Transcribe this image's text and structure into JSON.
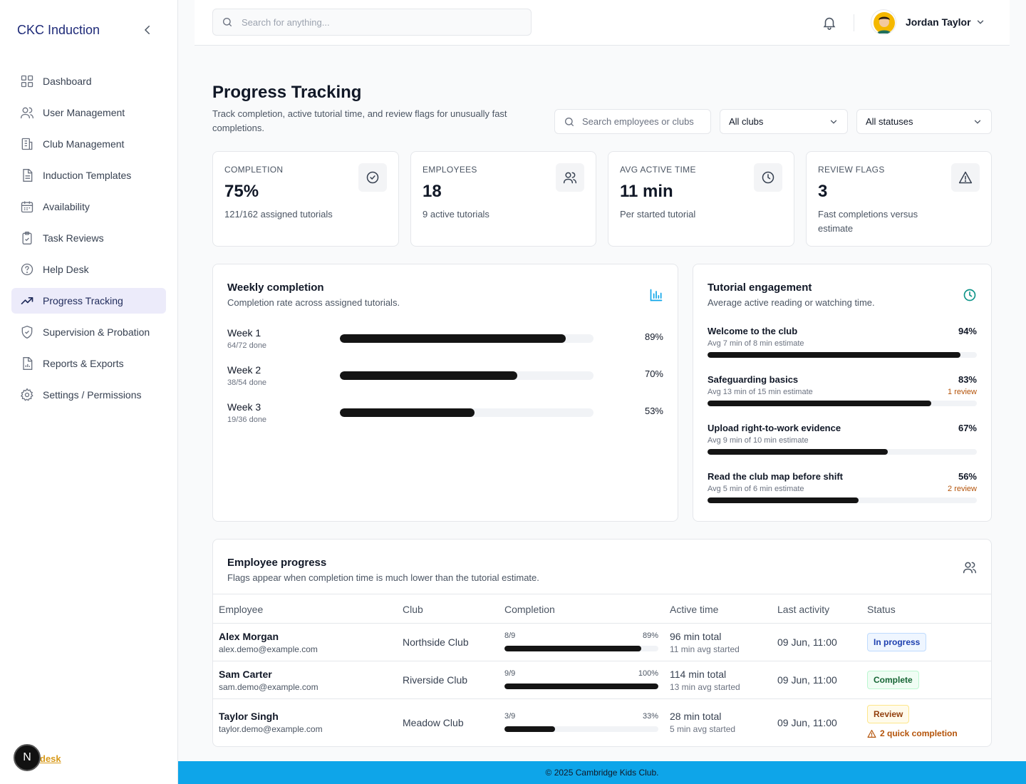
{
  "sidebar": {
    "brand": "CKC Induction",
    "items": [
      {
        "label": "Dashboard",
        "icon": "grid-icon"
      },
      {
        "label": "User Management",
        "icon": "users-icon"
      },
      {
        "label": "Club Management",
        "icon": "building-icon"
      },
      {
        "label": "Induction Templates",
        "icon": "document-icon"
      },
      {
        "label": "Availability",
        "icon": "calendar-icon"
      },
      {
        "label": "Task Reviews",
        "icon": "clipboard-check-icon"
      },
      {
        "label": "Help Desk",
        "icon": "help-circle-icon"
      },
      {
        "label": "Progress Tracking",
        "icon": "trending-up-icon",
        "active": true
      },
      {
        "label": "Supervision & Probation",
        "icon": "shield-check-icon"
      },
      {
        "label": "Reports & Exports",
        "icon": "file-chart-icon"
      },
      {
        "label": "Settings / Permissions",
        "icon": "gear-icon"
      }
    ],
    "badge_letter": "N",
    "help_link": "desk"
  },
  "topbar": {
    "search_placeholder": "Search for anything...",
    "user_name": "Jordan Taylor"
  },
  "page": {
    "title": "Progress Tracking",
    "subtitle": "Track completion, active tutorial time, and review flags for unusually fast completions.",
    "filter_search_placeholder": "Search employees or clubs",
    "club_filter": "All clubs",
    "status_filter": "All statuses"
  },
  "stats": [
    {
      "label": "COMPLETION",
      "value": "75%",
      "sub": "121/162 assigned tutorials",
      "icon": "check-circle-icon"
    },
    {
      "label": "EMPLOYEES",
      "value": "18",
      "sub": "9 active tutorials",
      "icon": "users-icon"
    },
    {
      "label": "AVG ACTIVE TIME",
      "value": "11 min",
      "sub": "Per started tutorial",
      "icon": "clock-icon"
    },
    {
      "label": "REVIEW FLAGS",
      "value": "3",
      "sub": "Fast completions versus estimate",
      "icon": "warning-triangle-icon"
    }
  ],
  "weekly": {
    "title": "Weekly completion",
    "subtitle": "Completion rate across assigned tutorials.",
    "rows": [
      {
        "name": "Week 1",
        "sub": "64/72 done",
        "pct": 89,
        "pct_label": "89%"
      },
      {
        "name": "Week 2",
        "sub": "38/54 done",
        "pct": 70,
        "pct_label": "70%"
      },
      {
        "name": "Week 3",
        "sub": "19/36 done",
        "pct": 53,
        "pct_label": "53%"
      }
    ]
  },
  "engagement": {
    "title": "Tutorial engagement",
    "subtitle": "Average active reading or watching time.",
    "rows": [
      {
        "name": "Welcome to the club",
        "sub": "Avg 7 min of 8 min estimate",
        "pct": 94,
        "pct_label": "94%",
        "review": ""
      },
      {
        "name": "Safeguarding basics",
        "sub": "Avg 13 min of 15 min estimate",
        "pct": 83,
        "pct_label": "83%",
        "review": "1 review"
      },
      {
        "name": "Upload right-to-work evidence",
        "sub": "Avg 9 min of 10 min estimate",
        "pct": 67,
        "pct_label": "67%",
        "review": ""
      },
      {
        "name": "Read the club map before shift",
        "sub": "Avg 5 min of 6 min estimate",
        "pct": 56,
        "pct_label": "56%",
        "review": "2 review"
      }
    ]
  },
  "employees": {
    "title": "Employee progress",
    "subtitle": "Flags appear when completion time is much lower than the tutorial estimate.",
    "headers": [
      "Employee",
      "Club",
      "Completion",
      "Active time",
      "Last activity",
      "Status"
    ],
    "rows": [
      {
        "name": "Alex Morgan",
        "email": "alex.demo@example.com",
        "club": "Northside Club",
        "frac": "8/9",
        "pct": 89,
        "pct_label": "89%",
        "total": "96 min total",
        "avg": "11 min avg started",
        "last": "09 Jun, 11:00",
        "status": "In progress",
        "status_kind": "blue",
        "flag": ""
      },
      {
        "name": "Sam Carter",
        "email": "sam.demo@example.com",
        "club": "Riverside Club",
        "frac": "9/9",
        "pct": 100,
        "pct_label": "100%",
        "total": "114 min total",
        "avg": "13 min avg started",
        "last": "09 Jun, 11:00",
        "status": "Complete",
        "status_kind": "green",
        "flag": ""
      },
      {
        "name": "Taylor Singh",
        "email": "taylor.demo@example.com",
        "club": "Meadow Club",
        "frac": "3/9",
        "pct": 33,
        "pct_label": "33%",
        "total": "28 min total",
        "avg": "5 min avg started",
        "last": "09 Jun, 11:00",
        "status": "Review",
        "status_kind": "amber",
        "flag": "2 quick completion"
      }
    ]
  },
  "footer": "© 2025 Cambridge Kids Club."
}
